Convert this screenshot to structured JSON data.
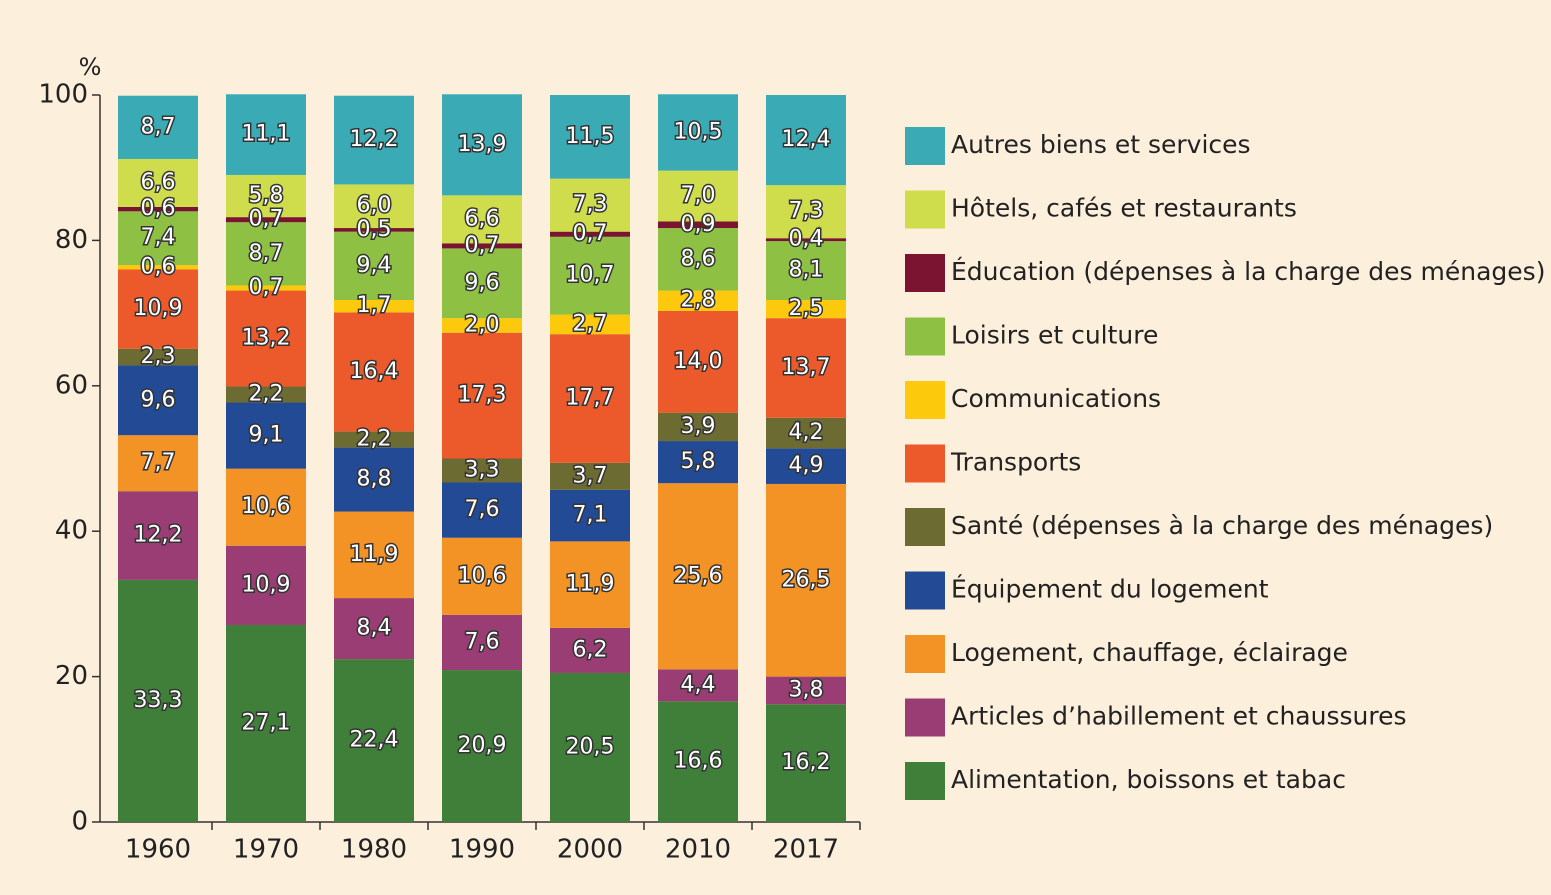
{
  "chart_data": {
    "type": "stacked_bar",
    "y_label": "%",
    "categories": [
      "1960",
      "1970",
      "1980",
      "1990",
      "2000",
      "2010",
      "2017"
    ],
    "ylim": [
      0,
      100
    ],
    "yticks": [
      0,
      20,
      40,
      60,
      80,
      100
    ],
    "series": [
      {
        "name": "Alimentation, boissons et tabac",
        "color": "#3f7f3a",
        "values": [
          33.3,
          27.1,
          22.4,
          20.9,
          20.5,
          16.6,
          16.2
        ],
        "value_labels": [
          "33,3",
          "27,1",
          "22,4",
          "20,9",
          "20,5",
          "16,6",
          "16,2"
        ]
      },
      {
        "name": "Articles d’habillement et chaussures",
        "color": "#9a3d74",
        "values": [
          12.2,
          10.9,
          8.4,
          7.6,
          6.2,
          4.4,
          3.8
        ],
        "value_labels": [
          "12,2",
          "10,9",
          "8,4",
          "7,6",
          "6,2",
          "4,4",
          "3,8"
        ]
      },
      {
        "name": "Logement, chauffage, éclairage",
        "color": "#f39325",
        "values": [
          7.7,
          10.6,
          11.9,
          10.6,
          11.9,
          25.6,
          26.5
        ],
        "value_labels": [
          "7,7",
          "10,6",
          "11,9",
          "10,6",
          "11,9",
          "25,6",
          "26,5"
        ]
      },
      {
        "name": "Équipement du logement",
        "color": "#234a95",
        "values": [
          9.6,
          9.1,
          8.8,
          7.6,
          7.1,
          5.8,
          4.9
        ],
        "value_labels": [
          "9,6",
          "9,1",
          "8,8",
          "7,6",
          "7,1",
          "5,8",
          "4,9"
        ]
      },
      {
        "name": "Santé (dépenses à la charge des ménages)",
        "color": "#6b6b32",
        "values": [
          2.3,
          2.2,
          2.2,
          3.3,
          3.7,
          3.9,
          4.2
        ],
        "value_labels": [
          "2,3",
          "2,2",
          "2,2",
          "3,3",
          "3,7",
          "3,9",
          "4,2"
        ]
      },
      {
        "name": "Transports",
        "color": "#ec5a2b",
        "values": [
          10.9,
          13.2,
          16.4,
          17.3,
          17.7,
          14.0,
          13.7
        ],
        "value_labels": [
          "10,9",
          "13,2",
          "16,4",
          "17,3",
          "17,7",
          "14,0",
          "13,7"
        ]
      },
      {
        "name": "Communications",
        "color": "#fdc90d",
        "values": [
          0.6,
          0.7,
          1.7,
          2.0,
          2.7,
          2.8,
          2.5
        ],
        "value_labels": [
          "0,6",
          "0,7",
          "1,7",
          "2,0",
          "2,7",
          "2,8",
          "2,5"
        ]
      },
      {
        "name": "Loisirs et culture",
        "color": "#8dc043",
        "values": [
          7.4,
          8.7,
          9.4,
          9.6,
          10.7,
          8.6,
          8.1
        ],
        "value_labels": [
          "7,4",
          "8,7",
          "9,4",
          "9,6",
          "10,7",
          "8,6",
          "8,1"
        ]
      },
      {
        "name": "Éducation (dépenses à la charge des ménages)",
        "color": "#7b1431",
        "values": [
          0.6,
          0.7,
          0.5,
          0.7,
          0.7,
          0.9,
          0.4
        ],
        "value_labels": [
          "0,6",
          "0,7",
          "0,5",
          "0,7",
          "0,7",
          "0,9",
          "0,4"
        ]
      },
      {
        "name": "Hôtels, cafés et restaurants",
        "color": "#cfdc4c",
        "values": [
          6.6,
          5.8,
          6.0,
          6.6,
          7.3,
          7.0,
          7.3
        ],
        "value_labels": [
          "6,6",
          "5,8",
          "6,0",
          "6,6",
          "7,3",
          "7,0",
          "7,3"
        ]
      },
      {
        "name": "Autres biens et services",
        "color": "#3aabb5",
        "values": [
          8.7,
          11.1,
          12.2,
          13.9,
          11.5,
          10.5,
          12.4
        ],
        "value_labels": [
          "8,7",
          "11,1",
          "12,2",
          "13,9",
          "11,5",
          "10,5",
          "12,4"
        ]
      }
    ]
  }
}
